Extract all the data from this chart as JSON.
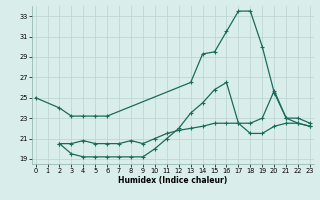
{
  "xlabel": "Humidex (Indice chaleur)",
  "bg_color": "#d9eeeb",
  "line_color": "#1a6b5a",
  "grid_color": "#b8d4d0",
  "ylim": [
    18.5,
    34.0
  ],
  "yticks": [
    19,
    21,
    23,
    25,
    27,
    29,
    31,
    33
  ],
  "xlim": [
    -0.3,
    23.3
  ],
  "xticks": [
    0,
    1,
    2,
    3,
    4,
    5,
    6,
    7,
    8,
    9,
    10,
    11,
    12,
    13,
    14,
    15,
    16,
    17,
    18,
    19,
    20,
    21,
    22,
    23
  ],
  "line1_x": [
    0,
    2,
    3,
    4,
    5,
    6,
    13,
    14,
    15,
    16,
    17,
    18,
    19,
    20,
    21,
    22,
    23
  ],
  "line1_y": [
    25,
    24,
    23.2,
    23.2,
    23.2,
    23.2,
    26.5,
    29.3,
    29.5,
    31.5,
    33.5,
    33.5,
    30.0,
    25.5,
    23.0,
    23.0,
    22.5
  ],
  "line2_x": [
    2,
    3,
    4,
    5,
    6,
    7,
    8,
    9,
    10,
    11,
    12,
    13,
    14,
    15,
    16,
    17,
    18,
    19,
    20,
    21,
    22,
    23
  ],
  "line2_y": [
    20.5,
    19.5,
    19.2,
    19.2,
    19.2,
    19.2,
    19.2,
    19.2,
    20.0,
    21.0,
    22.0,
    23.5,
    24.5,
    25.8,
    26.5,
    22.5,
    21.5,
    21.5,
    22.2,
    22.5,
    22.5,
    22.2
  ],
  "line3_x": [
    2,
    3,
    4,
    5,
    6,
    7,
    8,
    9,
    10,
    11,
    12,
    13,
    14,
    15,
    16,
    17,
    18,
    19,
    20,
    21,
    22,
    23
  ],
  "line3_y": [
    20.5,
    20.5,
    20.8,
    20.5,
    20.5,
    20.5,
    20.8,
    20.5,
    21.0,
    21.5,
    21.8,
    22.0,
    22.2,
    22.5,
    22.5,
    22.5,
    22.5,
    23.0,
    25.7,
    23.0,
    22.5,
    22.2
  ]
}
